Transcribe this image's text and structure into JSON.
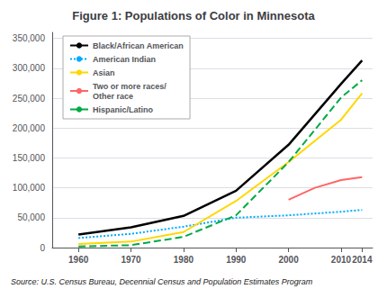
{
  "chart_data": {
    "type": "line",
    "title": "Figure 1: Populations of Color in Minnesota",
    "annotations": [
      "Source: U.S. Census Bureau, Decennial Census and Population Estimates Program"
    ],
    "xlim": [
      1955,
      2016
    ],
    "xticks": [
      1960,
      1970,
      1980,
      1990,
      2000,
      2010,
      2014
    ],
    "ylim": [
      0,
      360000
    ],
    "yticks": [
      0,
      {
        "value": 50000,
        "label": "50,000"
      },
      {
        "value": 100000,
        "label": "100,000"
      },
      {
        "value": 150000,
        "label": "150,000"
      },
      {
        "value": 200000,
        "label": "200,000"
      },
      {
        "value": 250000,
        "label": "250,000"
      },
      {
        "value": 300000,
        "label": "300,000"
      },
      {
        "value": 350000,
        "label": "350,000"
      }
    ],
    "grid": true,
    "legend": "upper left",
    "series": [
      {
        "name": "Black/African American",
        "color": "#000000",
        "line_style": "solid",
        "x": [
          1960,
          1970,
          1980,
          1990,
          2000,
          2010,
          2014
        ],
        "values": [
          22000,
          34000,
          53000,
          95000,
          172000,
          274000,
          313000
        ]
      },
      {
        "name": "American Indian",
        "color": "#00AAFF",
        "line_style": "dotted",
        "x": [
          1960,
          1970,
          1980,
          1990,
          2000,
          2010,
          2014
        ],
        "values": [
          16000,
          23000,
          35000,
          50000,
          54000,
          60000,
          63000
        ]
      },
      {
        "name": "Asian",
        "color": "#FFD700",
        "line_style": "solid",
        "x": [
          1960,
          1970,
          1980,
          1990,
          2000,
          2010,
          2014
        ],
        "values": [
          6000,
          10000,
          26000,
          78000,
          143000,
          214000,
          258000
        ]
      },
      {
        "name": "Two or more races/\nOther race",
        "color": "#FF6666",
        "line_style": "solid",
        "x": [
          2000,
          2005,
          2010,
          2014
        ],
        "values": [
          80000,
          100000,
          113000,
          118000
        ]
      },
      {
        "name": "Hispanic/Latino",
        "color": "#00AA44",
        "line_style": "dashed",
        "x": [
          1960,
          1970,
          1980,
          1990,
          2000,
          2010,
          2014
        ],
        "values": [
          2000,
          4000,
          18000,
          54000,
          143000,
          251000,
          280000
        ]
      }
    ]
  }
}
